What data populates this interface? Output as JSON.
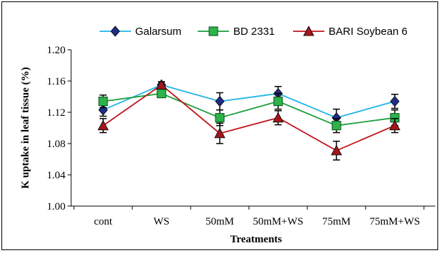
{
  "chart_data": {
    "type": "line",
    "title": "",
    "xlabel": "Treatments",
    "ylabel": "K uptake in leaf tissue (%)",
    "categories": [
      "cont",
      "WS",
      "50mM",
      "50mM+WS",
      "75mM",
      "75mM+WS"
    ],
    "ylim": [
      1.0,
      1.2
    ],
    "yticks": [
      "1.00",
      "1.04",
      "1.08",
      "1.12",
      "1.16",
      "1.20"
    ],
    "grid": false,
    "legend": "top",
    "series": [
      {
        "name": "Galarsum",
        "color": "#1fb4e8",
        "marker": "diamond",
        "marker_color": "#1f2d8a",
        "values": [
          1.123,
          1.155,
          1.134,
          1.144,
          1.113,
          1.134
        ],
        "errors": [
          0.008,
          0.004,
          0.011,
          0.009,
          0.011,
          0.009
        ]
      },
      {
        "name": "BD 2331",
        "color": "#1a9e3a",
        "marker": "square",
        "marker_color": "#2db34a",
        "values": [
          1.134,
          1.144,
          1.113,
          1.134,
          1.103,
          1.113
        ],
        "errors": [
          0.008,
          0.004,
          0.01,
          0.01,
          0.009,
          0.01
        ]
      },
      {
        "name": "BARI Soybean 6",
        "color": "#c0151b",
        "marker": "triangle",
        "marker_color": "#a8141a",
        "values": [
          1.103,
          1.155,
          1.093,
          1.113,
          1.071,
          1.103
        ],
        "errors": [
          0.009,
          0.004,
          0.013,
          0.009,
          0.012,
          0.009
        ]
      }
    ]
  }
}
